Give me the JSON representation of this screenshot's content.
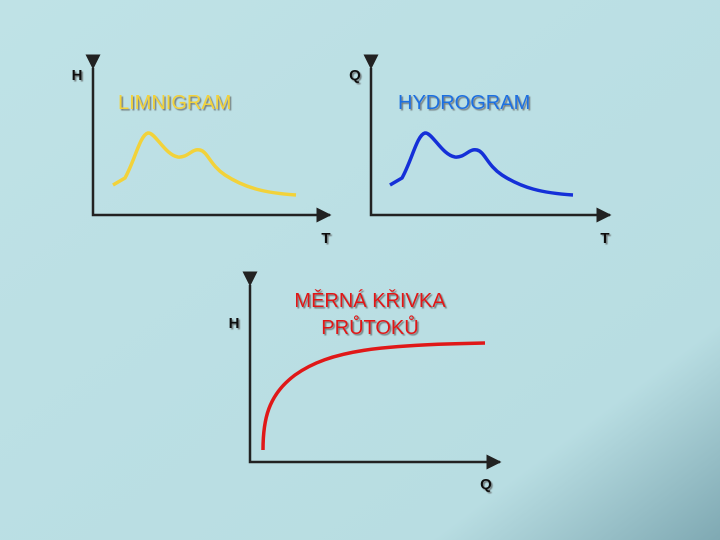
{
  "plots": [
    {
      "title": "LIMNIGRAM",
      "y_axis": "H",
      "x_axis": "T"
    },
    {
      "title": "HYDROGRAM",
      "y_axis": "Q",
      "x_axis": "T"
    },
    {
      "title": [
        "MĚRNÁ KŘIVKA",
        "PRŮTOKŮ"
      ],
      "y_axis": "H",
      "x_axis": "Q"
    }
  ]
}
